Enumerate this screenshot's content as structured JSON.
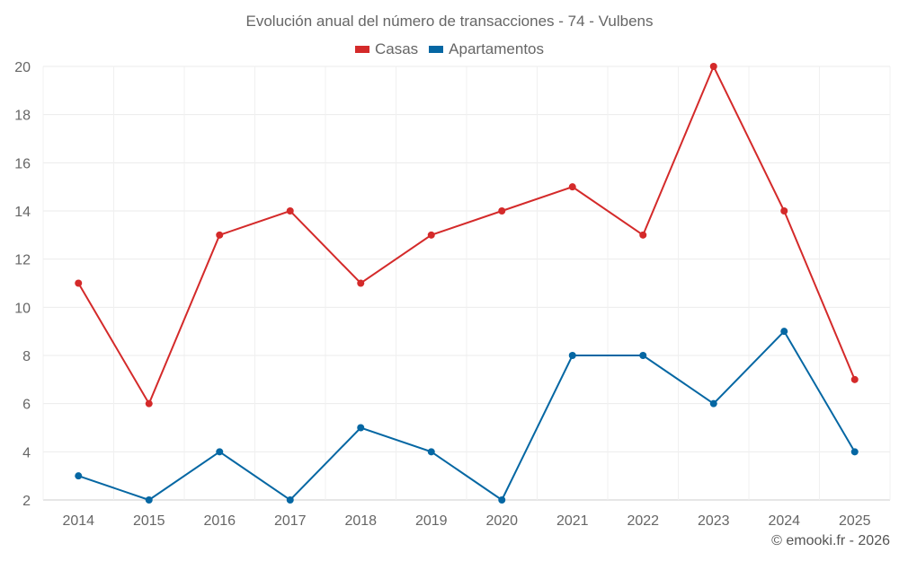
{
  "chart_data": {
    "type": "line",
    "title": "Evolución anual del número de transacciones - 74 - Vulbens",
    "categories": [
      "2014",
      "2015",
      "2016",
      "2017",
      "2018",
      "2019",
      "2020",
      "2021",
      "2022",
      "2023",
      "2024",
      "2025"
    ],
    "series": [
      {
        "name": "Casas",
        "color": "#d42a2a",
        "values": [
          11,
          6,
          13,
          14,
          11,
          13,
          14,
          15,
          13,
          20,
          14,
          7
        ]
      },
      {
        "name": "Apartamentos",
        "color": "#0567a3",
        "values": [
          3,
          2,
          4,
          2,
          5,
          4,
          2,
          8,
          8,
          6,
          9,
          4
        ]
      }
    ],
    "ylim": [
      2,
      20
    ],
    "yticks": [
      "2",
      "4",
      "6",
      "8",
      "10",
      "12",
      "14",
      "16",
      "18",
      "20"
    ],
    "grid": true,
    "legend": "top-center",
    "xlabel": "",
    "ylabel": ""
  },
  "credit": "© emooki.fr - 2026"
}
